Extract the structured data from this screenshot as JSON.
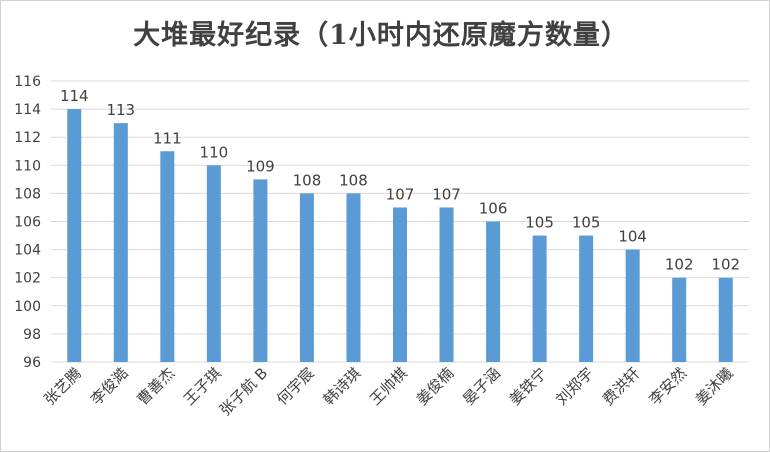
{
  "chart_data": {
    "type": "bar",
    "title": "大堆最好纪录（1小时内还原魔方数量）",
    "xlabel": "",
    "ylabel": "",
    "categories": [
      "张艺腾",
      "李俊澔",
      "曹善杰",
      "王子琪",
      "张子航 B",
      "何宇宸",
      "韩诗琪",
      "王帅棋",
      "姜俊楠",
      "晏子涵",
      "姜铁宁",
      "刘郑宇",
      "费洪轩",
      "李安然",
      "姜沐曦"
    ],
    "values": [
      114,
      113,
      111,
      110,
      109,
      108,
      108,
      107,
      107,
      106,
      105,
      105,
      104,
      102,
      102
    ],
    "ylim": [
      96,
      116
    ],
    "yticks": [
      96,
      98,
      100,
      102,
      104,
      106,
      108,
      110,
      112,
      114,
      116
    ],
    "grid": true,
    "legend": "none",
    "data_labels": true,
    "bar_color": "#5b9bd5"
  }
}
